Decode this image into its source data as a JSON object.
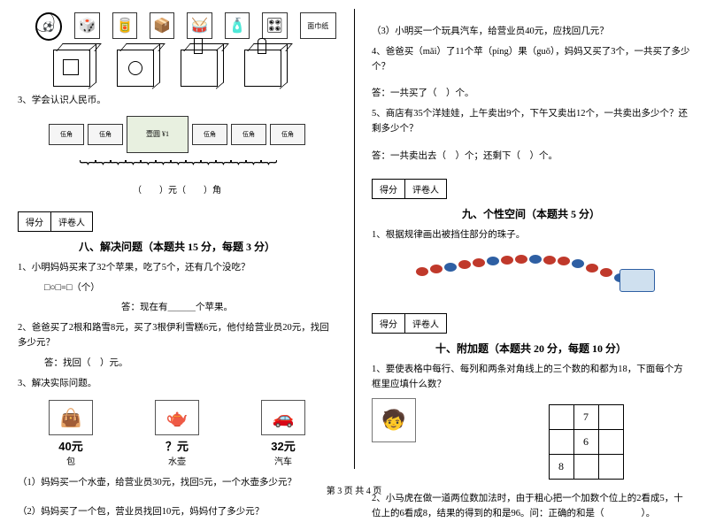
{
  "footer": "第 3 页 共 4 页",
  "left": {
    "q3": "3、学会认识人民币。",
    "money_label": "（　　）元（　　）角",
    "score_labels": [
      "得分",
      "评卷人"
    ],
    "section8_title": "八、解决问题（本题共 15 分，每题 3 分）",
    "q8_1": "1、小明妈妈买来了32个苹果，吃了5个，还有几个没吃？",
    "q8_1_eq": "□○□=□（个）",
    "q8_1_ans": "答：现在有＿＿＿个苹果。",
    "q8_2": "2、爸爸买了2根和路雪8元，买了3根伊利雪糕6元，他付给营业员20元，找回多少元？",
    "q8_2_ans": "答：找回（　）元。",
    "q8_3": "3、解决实际问题。",
    "items": [
      {
        "price": "40元",
        "name": "包",
        "icon": "👜"
      },
      {
        "price": "？元",
        "name": "水壶",
        "icon": "🫖"
      },
      {
        "price": "32元",
        "name": "汽车",
        "icon": "🚗"
      }
    ],
    "q8_3_1": "（1）妈妈买一个水壶，给营业员30元，找回5元，一个水壶多少元？",
    "q8_3_2": "（2）妈妈买了一个包，营业员找回10元，妈妈付了多少元？"
  },
  "right": {
    "q8_3_3": "（3）小明买一个玩具汽车，给营业员40元，应找回几元？",
    "q8_4": "4、爸爸买（mǎi）了11个苹（píng）果（guǒ），妈妈又买了3个，一共买了多少个？",
    "q8_4_ans": "答：一共买了（　）个。",
    "q8_5": "5、商店有35个洋娃娃，上午卖出9个，下午又卖出12个，一共卖出多少个？还剩多少个？",
    "q8_5_ans": "答：一共卖出去（　）个；还剩下（　）个。",
    "score_labels": [
      "得分",
      "评卷人"
    ],
    "section9_title": "九、个性空间（本题共 5 分）",
    "q9_1": "1、根据规律画出被挡住部分的珠子。",
    "bead_colors": [
      "#c0392b",
      "#c0392b",
      "#2e5fa3",
      "#c0392b",
      "#c0392b",
      "#2e5fa3",
      "#c0392b",
      "#c0392b",
      "#2e5fa3",
      "#c0392b",
      "#c0392b",
      "#2e5fa3",
      "#c0392b",
      "#c0392b",
      "#2e5fa3",
      "#c0392b"
    ],
    "section10_title": "十、附加题（本题共 20 分，每题 10 分）",
    "q10_1": "1、要使表格中每行、每列和两条对角线上的三个数的和都为18，下面每个方框里应填什么数？",
    "grid": [
      "",
      "7",
      "",
      "",
      "6",
      "",
      "8",
      "",
      ""
    ],
    "q10_2": "2、小马虎在做一道两位数加法时，由于粗心把一个加数个位上的2看成5，十位上的6看成8，结果的得到的和是96。问：正确的和是（　　　　）。"
  }
}
